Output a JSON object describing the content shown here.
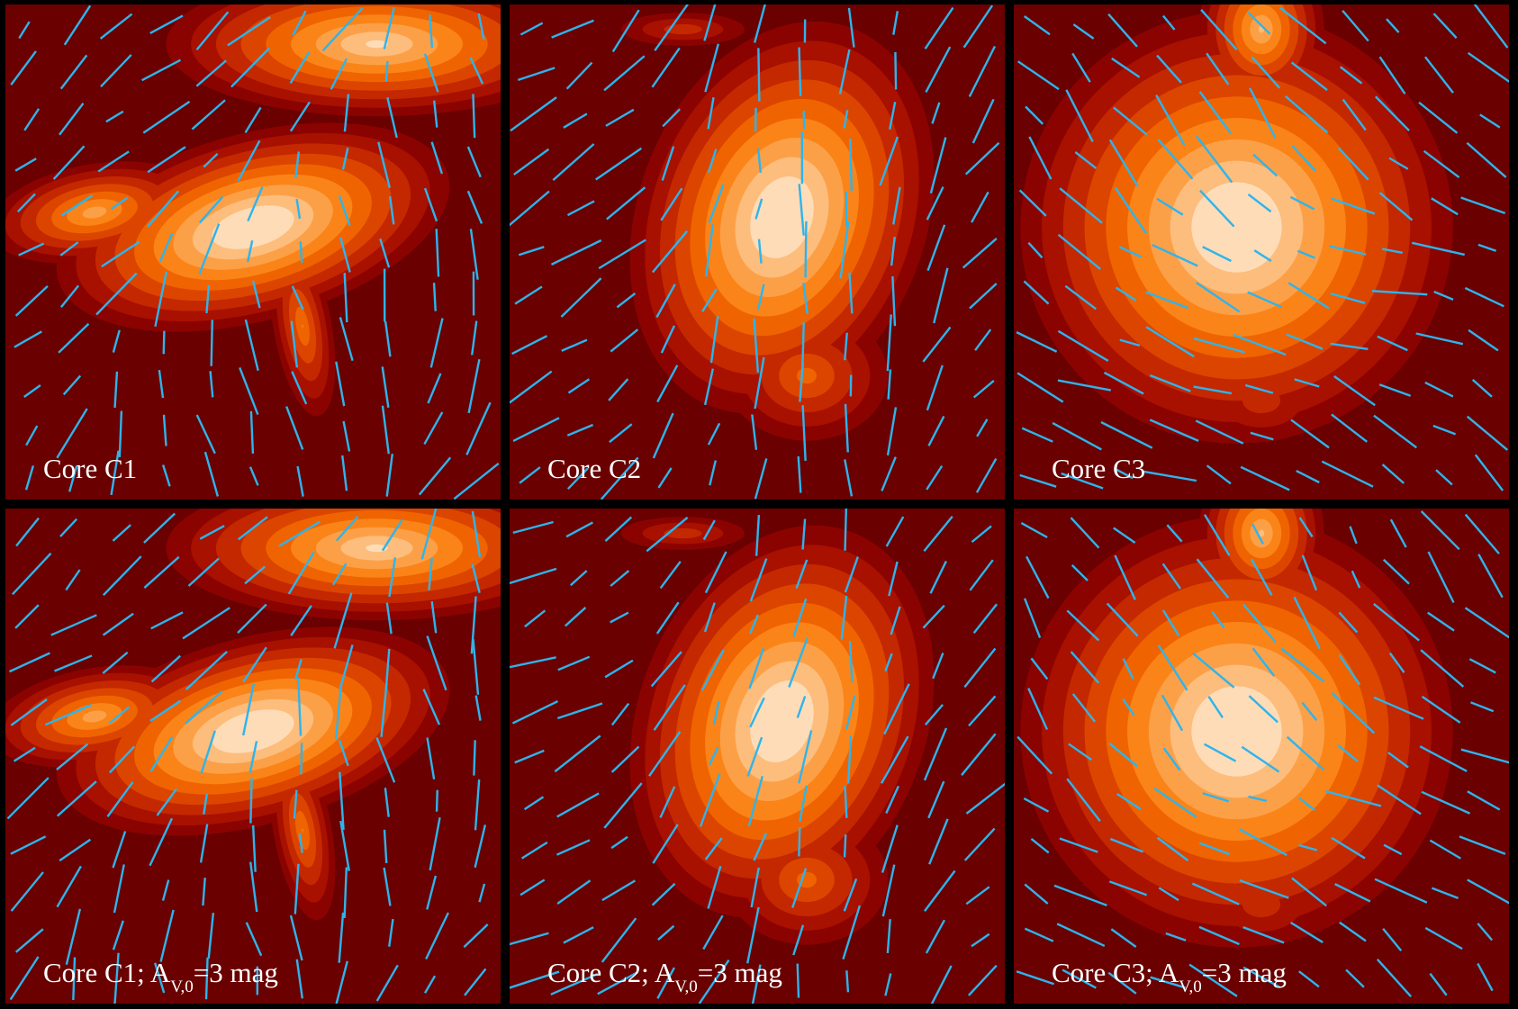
{
  "panels": [
    {
      "label": [
        "Core C1"
      ]
    },
    {
      "label": [
        "Core C2"
      ]
    },
    {
      "label": [
        "Core C3"
      ]
    },
    {
      "label": [
        "Core C1; A",
        "V,0",
        "=3 mag"
      ]
    },
    {
      "label": [
        "Core C2; A",
        "V,0",
        "=3 mag"
      ]
    },
    {
      "label": [
        "Core C3; A",
        "V,0",
        "=3 mag"
      ]
    }
  ]
}
